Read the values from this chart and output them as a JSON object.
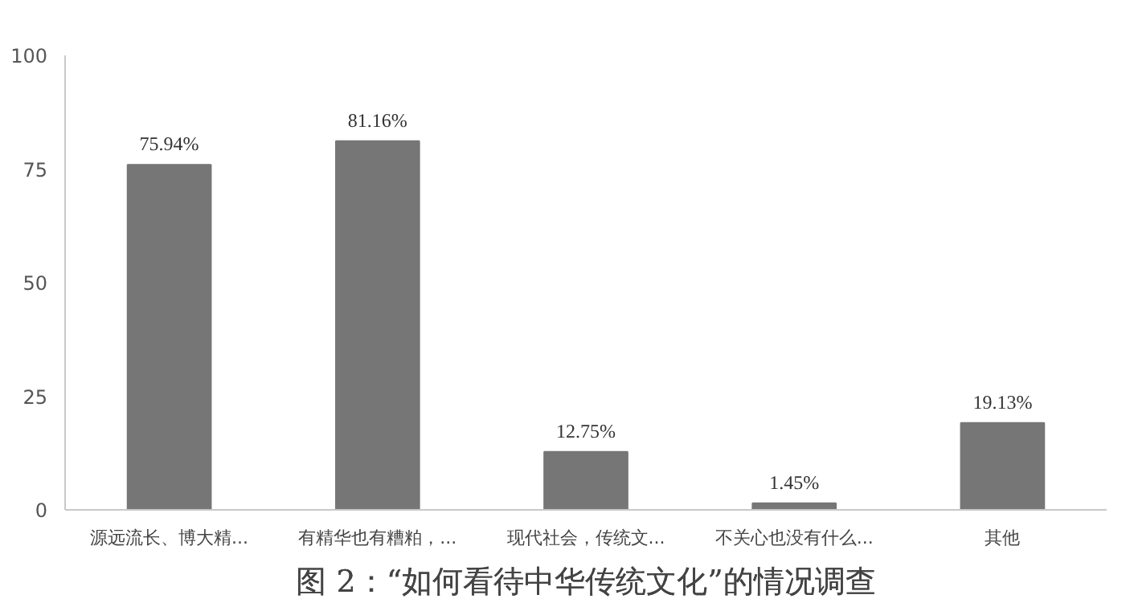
{
  "chart_data": {
    "type": "bar",
    "title": "图 2：“如何看待中华传统文化”的情况调查",
    "categories": [
      "源远流长、博大精...",
      "有精华也有糟粕，...",
      "现代社会，传统文...",
      "不关心也没有什么...",
      "其他"
    ],
    "values": [
      75.94,
      81.16,
      12.75,
      1.45,
      19.13
    ],
    "value_labels": [
      "75.94%",
      "81.16%",
      "12.75%",
      "1.45%",
      "19.13%"
    ],
    "color": "#767676",
    "ylim": [
      0,
      100
    ],
    "yticks": [
      0,
      25,
      50,
      75,
      100
    ],
    "grid": false
  }
}
